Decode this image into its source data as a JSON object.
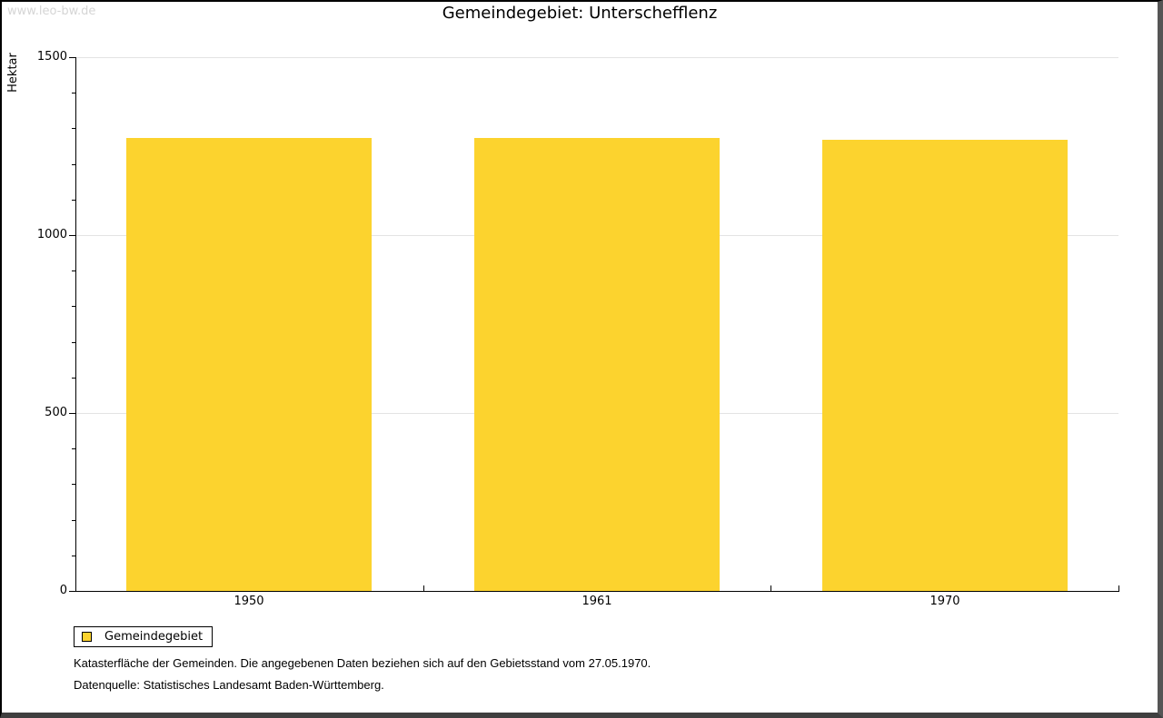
{
  "window": {
    "watermark": "www.leo-bw.de"
  },
  "title": "Gemeindegebiet: Unterschefflenz",
  "chart_data": {
    "type": "bar",
    "title": "Gemeindegebiet: Unterschefflenz",
    "categories": [
      "1950",
      "1961",
      "1970"
    ],
    "series": [
      {
        "name": "Gemeindegebiet",
        "values": [
          1272,
          1272,
          1269
        ]
      }
    ],
    "xlabel": "",
    "ylabel": "Hektar",
    "ylim": [
      0,
      1500
    ],
    "yticks_major": [
      0,
      500,
      1000,
      1500
    ],
    "ytick_minor_step": 100,
    "grid": "horizontal-major-only",
    "legend_position": "bottom-left",
    "bar_color": "#fcd32e",
    "gridline_color": "#e3e3e3",
    "axis_color": "#000000"
  },
  "legend": {
    "items": [
      {
        "label": "Gemeindegebiet",
        "color": "#fcd32e"
      }
    ]
  },
  "notes": {
    "line1": "Katasterfläche der Gemeinden. Die angegebenen Daten beziehen sich auf den Gebietsstand vom 27.05.1970.",
    "line2": "Datenquelle: Statistisches Landesamt Baden-Württemberg."
  }
}
